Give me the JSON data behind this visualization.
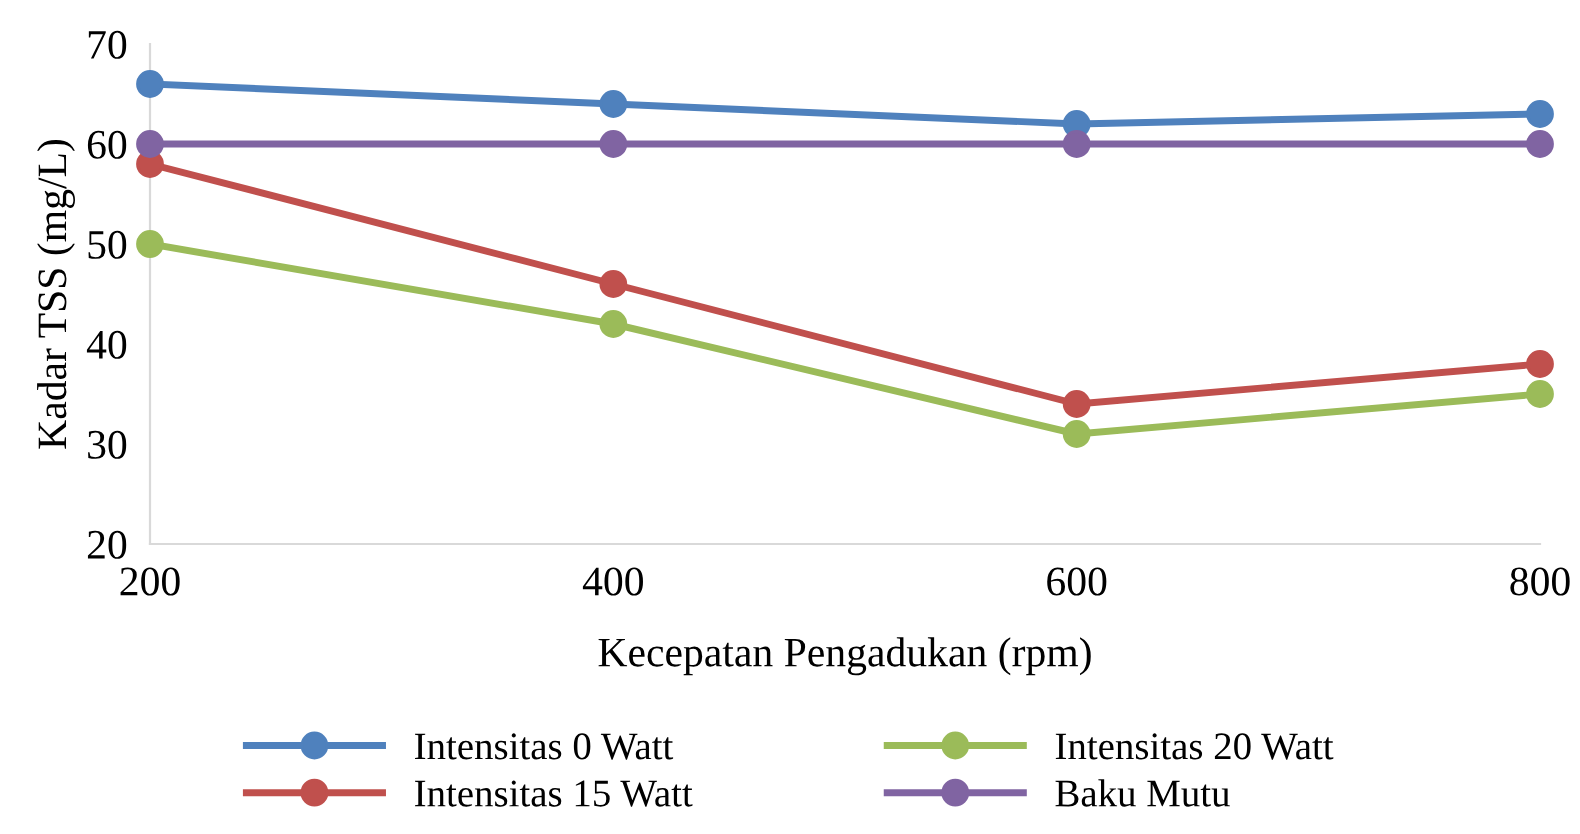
{
  "chart_data": {
    "type": "line",
    "xlabel": "Kecepatan Pengadukan (rpm)",
    "ylabel": "Kadar TSS (mg/L)",
    "x": [
      200,
      400,
      600,
      800
    ],
    "series": [
      {
        "name": "Intensitas 0 Watt",
        "color": "#4f81bd",
        "values": [
          66,
          64,
          62,
          63
        ]
      },
      {
        "name": "Intensitas 15 Watt",
        "color": "#c0504d",
        "values": [
          58,
          46,
          34,
          38
        ]
      },
      {
        "name": "Intensitas 20 Watt",
        "color": "#9bbb59",
        "values": [
          50,
          42,
          31,
          35
        ]
      },
      {
        "name": "Baku Mutu",
        "color": "#8064a2",
        "values": [
          60,
          60,
          60,
          60
        ]
      }
    ],
    "xlim": [
      200,
      800
    ],
    "xticks": [
      200,
      400,
      600,
      800
    ],
    "ylim": [
      20,
      70
    ],
    "yticks": [
      20,
      30,
      40,
      50,
      60,
      70
    ],
    "grid": false,
    "legend": "bottom",
    "marker": "circle",
    "line_style": "solid"
  }
}
